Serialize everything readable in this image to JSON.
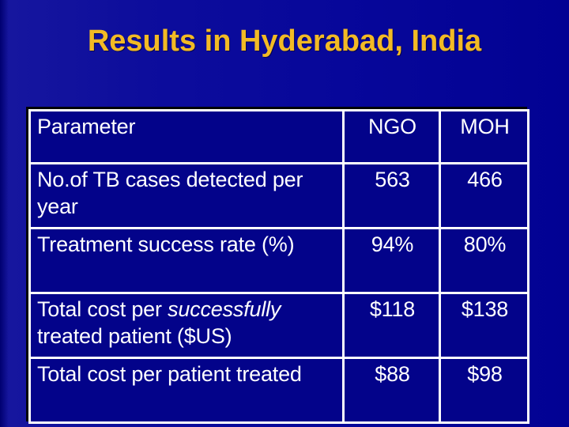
{
  "slide": {
    "title": "Results in Hyderabad, India"
  },
  "table": {
    "header": {
      "parameter": "Parameter",
      "ngo": "NGO",
      "moh": "MOH"
    },
    "rows": [
      {
        "parameter": "No.of TB cases detected per year",
        "ngo": "563",
        "moh": "466"
      },
      {
        "parameter": "Treatment success rate (%)",
        "ngo": "94%",
        "moh": "80%"
      },
      {
        "parameter_pre": "Total cost per ",
        "parameter_italic": "successfully",
        "parameter_post": " treated patient ($US)",
        "ngo": "$118",
        "moh": "$138"
      },
      {
        "parameter": "Total cost per patient treated",
        "ngo": "$88",
        "moh": "$98"
      }
    ]
  },
  "colors": {
    "background": "#0a0a99",
    "cell_fill": "#03038a",
    "border": "#ffffff",
    "title": "#f2ba25",
    "text": "#ffffff"
  }
}
